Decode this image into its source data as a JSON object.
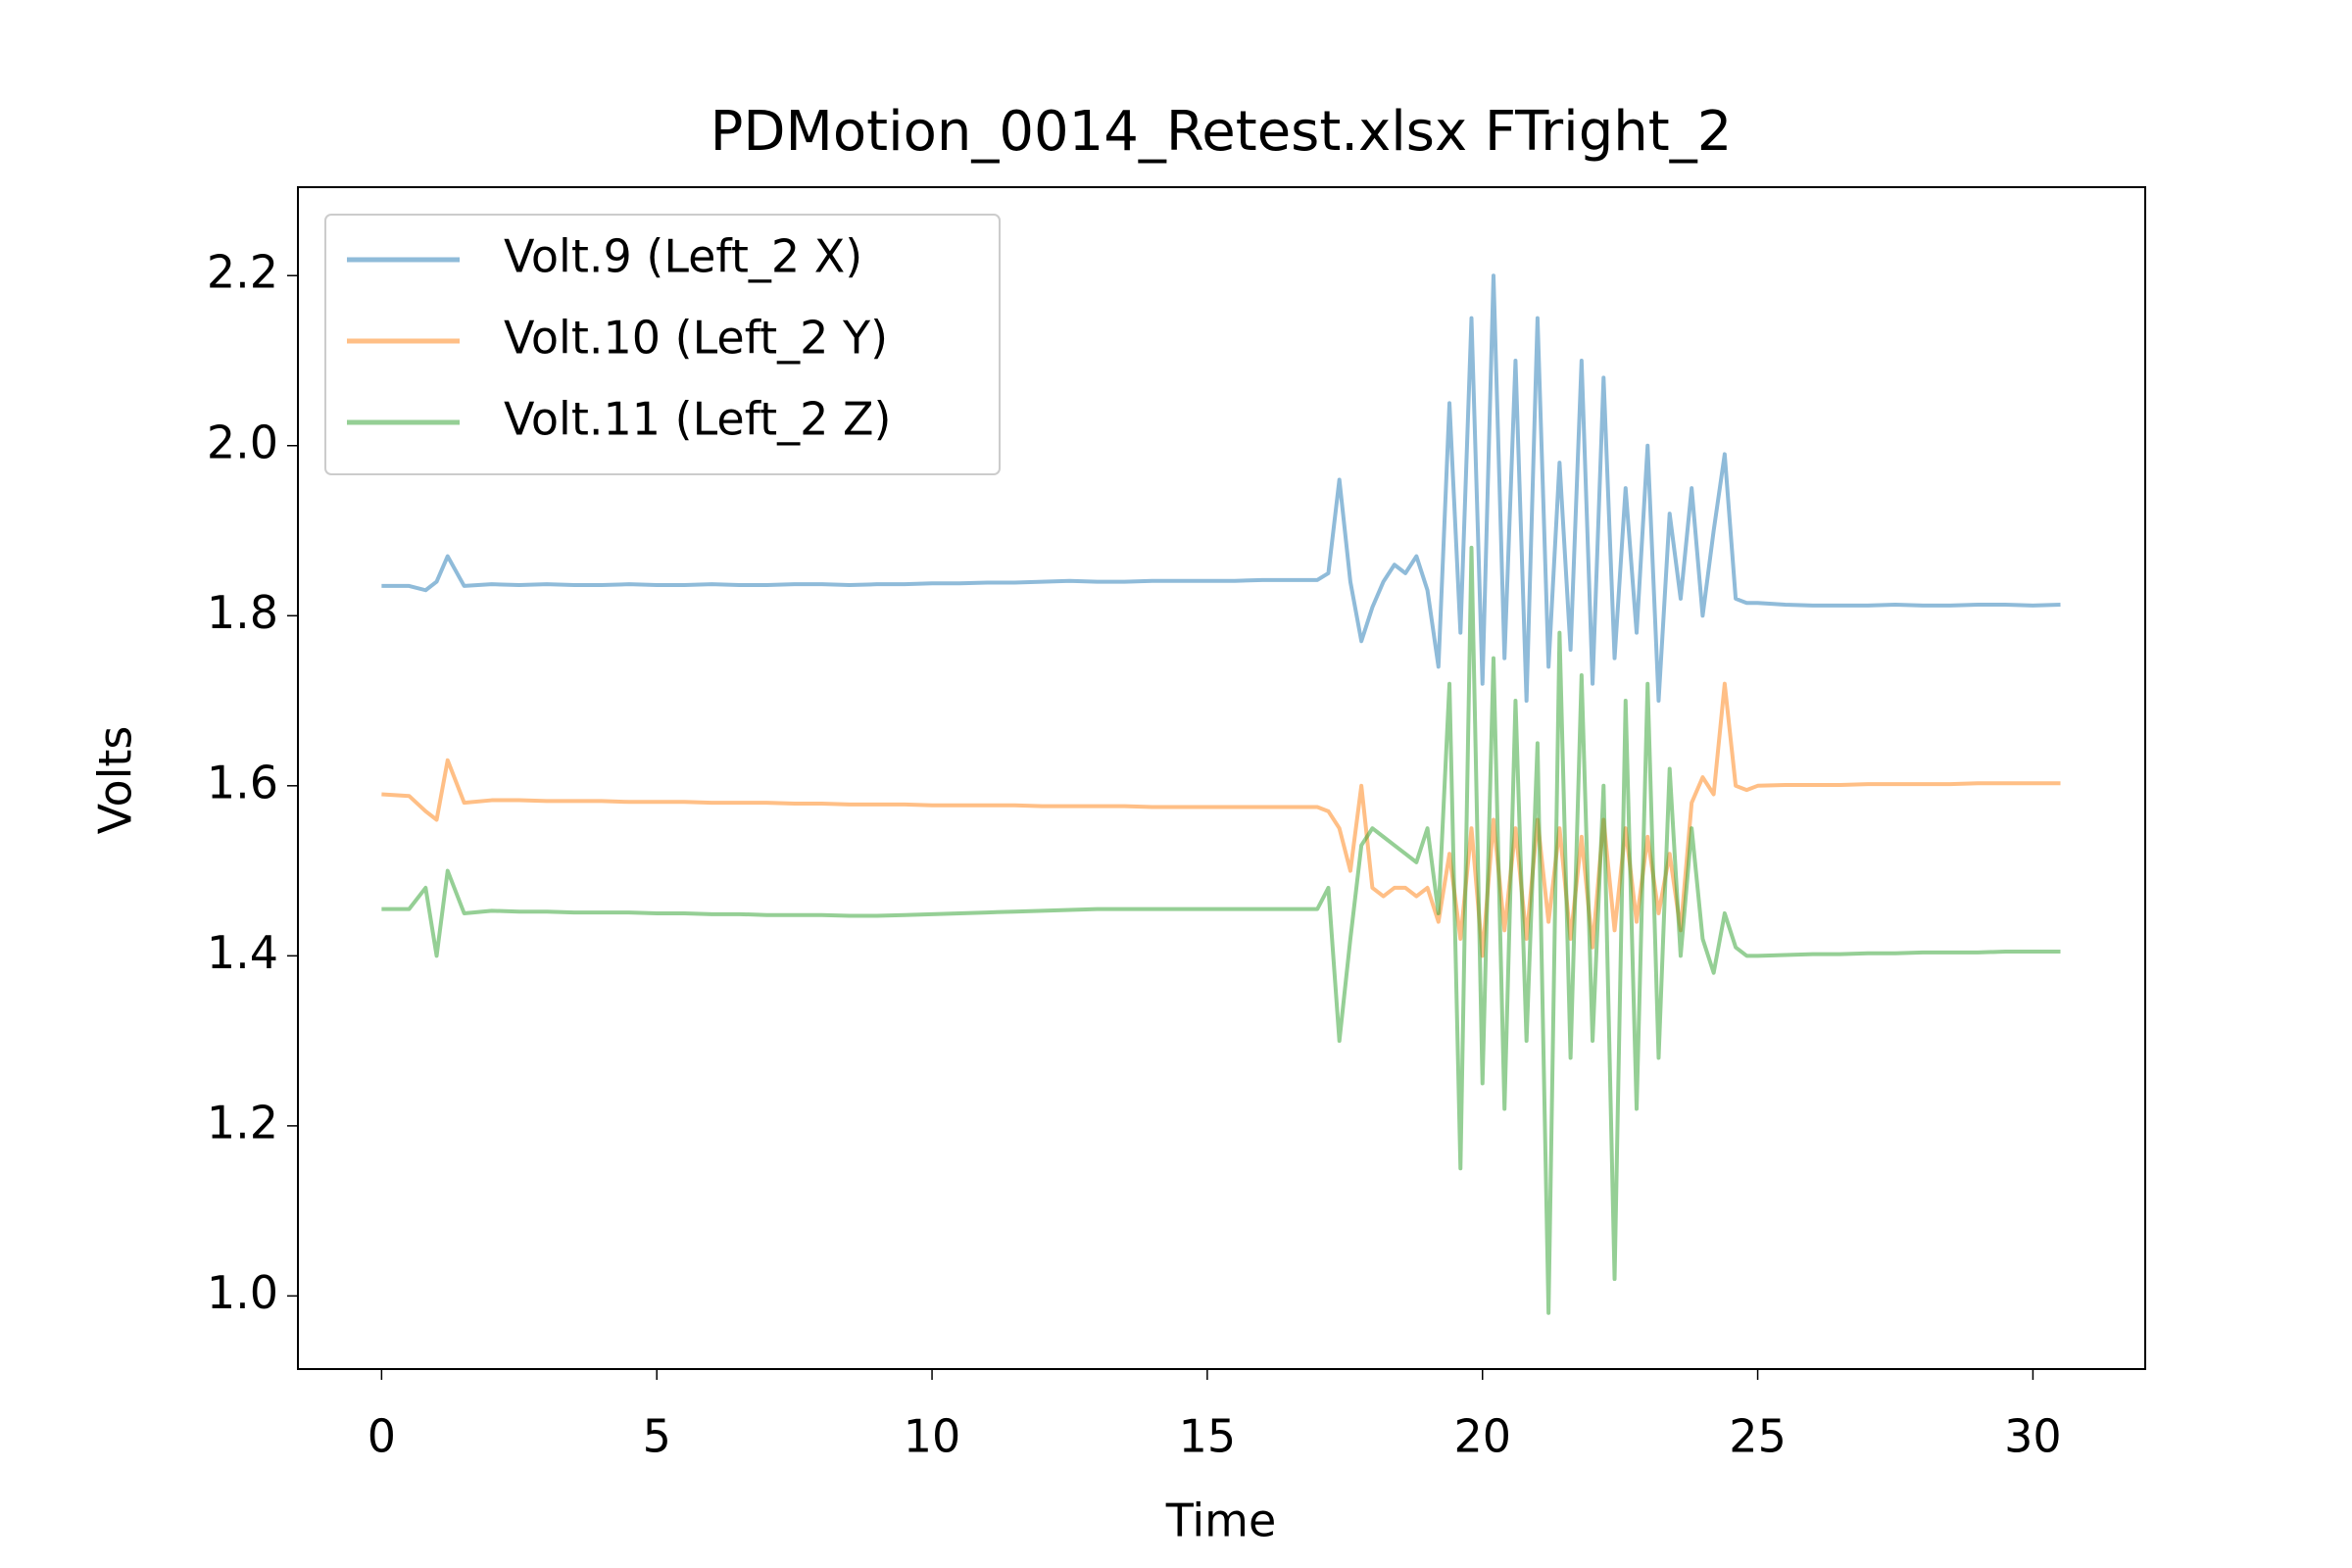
{
  "chart_data": {
    "type": "line",
    "title": "PDMotion_0014_Retest.xlsx FTright_2",
    "x_label": "Time",
    "y_label": "Volts",
    "xlim": [
      -1.52,
      32.04
    ],
    "ylim": [
      0.914,
      2.304
    ],
    "xticks": [
      0,
      5,
      10,
      15,
      20,
      25,
      30
    ],
    "yticks": [
      {
        "value": 1,
        "label": "1.0"
      },
      1.2,
      1.4,
      1.6,
      1.8,
      {
        "value": 2,
        "label": "2.0"
      },
      2.2
    ],
    "legend": "upper left",
    "opacity": 0.5,
    "x": [
      0,
      0.5,
      0.8,
      1.0,
      1.2,
      1.5,
      2,
      2.5,
      3,
      3.5,
      4,
      4.5,
      5,
      5.5,
      6,
      6.5,
      7,
      7.5,
      8,
      8.5,
      9,
      9.5,
      10,
      10.5,
      11,
      11.5,
      12,
      12.5,
      13,
      13.5,
      14,
      14.5,
      15,
      15.5,
      16,
      16.5,
      17,
      17.2,
      17.4,
      17.6,
      17.8,
      18.0,
      18.2,
      18.4,
      18.6,
      18.8,
      19.0,
      19.2,
      19.4,
      19.6,
      19.8,
      20.0,
      20.2,
      20.4,
      20.6,
      20.8,
      21.0,
      21.2,
      21.4,
      21.6,
      21.8,
      22.0,
      22.2,
      22.4,
      22.6,
      22.8,
      23.0,
      23.2,
      23.4,
      23.6,
      23.8,
      24.0,
      24.2,
      24.4,
      24.6,
      24.8,
      25,
      25.5,
      26,
      26.5,
      27,
      27.5,
      28,
      28.5,
      29,
      29.5,
      30,
      30.5
    ],
    "series": [
      {
        "name": "Volt.9 (Left_2 X)",
        "color": "#1f77b4",
        "values": [
          1.835,
          1.835,
          1.83,
          1.84,
          1.87,
          1.835,
          1.837,
          1.836,
          1.837,
          1.836,
          1.836,
          1.837,
          1.836,
          1.836,
          1.837,
          1.836,
          1.836,
          1.837,
          1.837,
          1.836,
          1.837,
          1.837,
          1.838,
          1.838,
          1.839,
          1.839,
          1.84,
          1.841,
          1.84,
          1.84,
          1.841,
          1.841,
          1.841,
          1.841,
          1.842,
          1.842,
          1.842,
          1.85,
          1.96,
          1.84,
          1.77,
          1.81,
          1.84,
          1.86,
          1.85,
          1.87,
          1.83,
          1.74,
          2.05,
          1.78,
          2.15,
          1.72,
          2.2,
          1.75,
          2.1,
          1.7,
          2.15,
          1.74,
          1.98,
          1.76,
          2.1,
          1.72,
          2.08,
          1.75,
          1.95,
          1.78,
          2.0,
          1.7,
          1.92,
          1.82,
          1.95,
          1.8,
          1.9,
          1.99,
          1.82,
          1.815,
          1.815,
          1.813,
          1.812,
          1.812,
          1.812,
          1.813,
          1.812,
          1.812,
          1.813,
          1.813,
          1.812,
          1.813
        ]
      },
      {
        "name": "Volt.10 (Left_2 Y)",
        "color": "#ff7f0e",
        "values": [
          1.59,
          1.588,
          1.57,
          1.56,
          1.63,
          1.58,
          1.583,
          1.583,
          1.582,
          1.582,
          1.582,
          1.581,
          1.581,
          1.581,
          1.58,
          1.58,
          1.58,
          1.579,
          1.579,
          1.578,
          1.578,
          1.578,
          1.577,
          1.577,
          1.577,
          1.577,
          1.576,
          1.576,
          1.576,
          1.576,
          1.575,
          1.575,
          1.575,
          1.575,
          1.575,
          1.575,
          1.575,
          1.57,
          1.55,
          1.5,
          1.6,
          1.48,
          1.47,
          1.48,
          1.48,
          1.47,
          1.48,
          1.44,
          1.52,
          1.42,
          1.55,
          1.4,
          1.56,
          1.43,
          1.55,
          1.42,
          1.56,
          1.44,
          1.55,
          1.42,
          1.54,
          1.41,
          1.56,
          1.43,
          1.55,
          1.44,
          1.54,
          1.45,
          1.52,
          1.43,
          1.58,
          1.61,
          1.59,
          1.72,
          1.6,
          1.595,
          1.6,
          1.601,
          1.601,
          1.601,
          1.602,
          1.602,
          1.602,
          1.602,
          1.603,
          1.603,
          1.603,
          1.603
        ]
      },
      {
        "name": "Volt.11 (Left_2 Z)",
        "color": "#2ca02c",
        "values": [
          1.455,
          1.455,
          1.48,
          1.4,
          1.5,
          1.45,
          1.453,
          1.452,
          1.452,
          1.451,
          1.451,
          1.451,
          1.45,
          1.45,
          1.449,
          1.449,
          1.448,
          1.448,
          1.448,
          1.447,
          1.447,
          1.448,
          1.449,
          1.45,
          1.451,
          1.452,
          1.453,
          1.454,
          1.455,
          1.455,
          1.455,
          1.455,
          1.455,
          1.455,
          1.455,
          1.455,
          1.455,
          1.48,
          1.3,
          1.42,
          1.53,
          1.55,
          1.54,
          1.53,
          1.52,
          1.51,
          1.55,
          1.45,
          1.72,
          1.15,
          1.88,
          1.25,
          1.75,
          1.22,
          1.7,
          1.3,
          1.65,
          0.98,
          1.78,
          1.28,
          1.73,
          1.3,
          1.6,
          1.02,
          1.7,
          1.22,
          1.72,
          1.28,
          1.62,
          1.4,
          1.55,
          1.42,
          1.38,
          1.45,
          1.41,
          1.4,
          1.4,
          1.401,
          1.402,
          1.402,
          1.403,
          1.403,
          1.404,
          1.404,
          1.404,
          1.405,
          1.405,
          1.405
        ]
      }
    ]
  }
}
